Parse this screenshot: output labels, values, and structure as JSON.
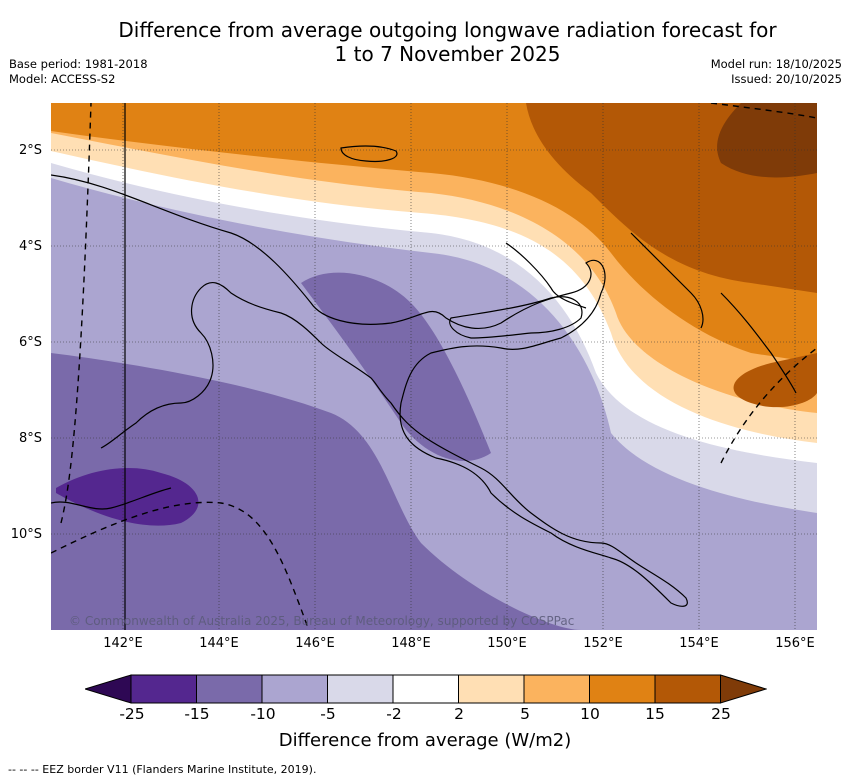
{
  "title": {
    "line1": "Difference from average outgoing longwave radiation forecast for",
    "line2": "1 to 7 November 2025"
  },
  "meta": {
    "base_period": "Base period: 1981-2018",
    "model": "Model: ACCESS-S2",
    "model_run": "Model run: 18/10/2025",
    "issued": "Issued: 20/10/2025"
  },
  "map": {
    "region": "Papua New Guinea",
    "latitude_labels": [
      "2°S",
      "4°S",
      "6°S",
      "8°S",
      "10°S"
    ],
    "longitude_labels": [
      "142°E",
      "144°E",
      "146°E",
      "148°E",
      "150°E",
      "152°E",
      "154°E",
      "156°E"
    ],
    "copyright": "© Commonwealth of Australia 2025, Bureau of Meteorology, supported by COSPPac"
  },
  "colorbar": {
    "ticks": [
      "-25",
      "-15",
      "-10",
      "-5",
      "-2",
      "2",
      "5",
      "10",
      "15",
      "25"
    ],
    "colors": [
      "#2e0854",
      "#54278f",
      "#7a6aaa",
      "#aba5d0",
      "#d9d9e9",
      "#ffffff",
      "#ffdfb4",
      "#fbb35e",
      "#e08214",
      "#b35806",
      "#7f3b08"
    ],
    "label": "Difference from average (W/m2)"
  },
  "footnote": "--  --  -- EEZ border V11 (Flanders Marine Institute, 2019)."
}
